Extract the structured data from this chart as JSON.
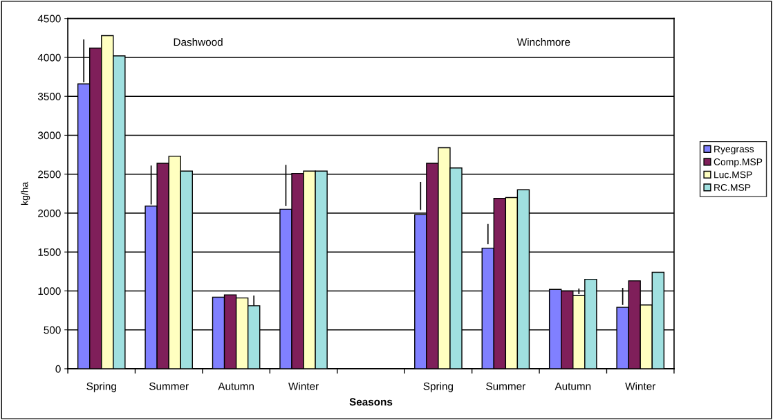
{
  "chart_data": {
    "type": "bar",
    "xlabel": "Seasons",
    "ylabel": "kg/ha",
    "categories": [
      "Spring",
      "Summer",
      "Autumn",
      "Winter",
      null,
      "Spring",
      "Summer",
      "Autumn",
      "Winter"
    ],
    "series": [
      {
        "name": "Ryegrass",
        "color": "#8080ff",
        "values": [
          3660,
          2090,
          920,
          2050,
          null,
          1980,
          1550,
          1020,
          790
        ],
        "errors": [
          [
            3680,
            4230
          ],
          [
            2110,
            2610
          ],
          null,
          [
            2090,
            2620
          ],
          null,
          [
            2040,
            2400
          ],
          [
            1600,
            1860
          ],
          null,
          [
            820,
            1040
          ]
        ]
      },
      {
        "name": "Comp.MSP",
        "color": "#7f1f5a",
        "values": [
          4120,
          2640,
          950,
          2510,
          null,
          2640,
          2190,
          1000,
          1130
        ]
      },
      {
        "name": "Luc.MSP",
        "color": "#ffffc0",
        "values": [
          4280,
          2730,
          910,
          2540,
          null,
          2840,
          2200,
          940,
          820
        ],
        "errors": [
          null,
          null,
          null,
          null,
          null,
          null,
          null,
          [
            960,
            1030
          ],
          null
        ]
      },
      {
        "name": "RC.MSP",
        "color": "#a0e0e0",
        "values": [
          4020,
          2540,
          810,
          2540,
          null,
          2580,
          2300,
          1150,
          1240
        ],
        "errors": [
          null,
          null,
          [
            810,
            940
          ],
          null,
          null,
          null,
          null,
          null,
          null
        ]
      }
    ],
    "ylim": [
      0,
      4500
    ],
    "yticks": [
      0,
      500,
      1000,
      1500,
      2000,
      2500,
      3000,
      3500,
      4000,
      4500
    ],
    "grid": "y",
    "legend": "right",
    "annotations": [
      "Dashwood",
      "Winchmore"
    ]
  }
}
